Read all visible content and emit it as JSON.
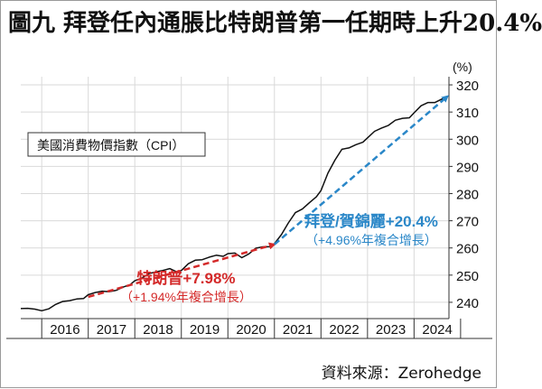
{
  "title": "圖九  拜登任內通脹比特朗普第一任期時上升20.4%",
  "source": "資料來源：Zerohedge",
  "chart_data": {
    "type": "line",
    "series_label": "美國消費物價指數（CPI）",
    "y_unit": "(%)",
    "ylim": [
      234,
      323
    ],
    "y_ticks": [
      240,
      250,
      260,
      270,
      280,
      290,
      300,
      310,
      320
    ],
    "x_ticks": [
      "2016",
      "2017",
      "2018",
      "2019",
      "2020",
      "2021",
      "2022",
      "2023",
      "2024"
    ],
    "xlim": [
      2015.55,
      2024.75
    ],
    "series": [
      {
        "values": [
          [
            2015.55,
            237.7
          ],
          [
            2015.7,
            237.8
          ],
          [
            2015.85,
            237.5
          ],
          [
            2016.0,
            236.9
          ],
          [
            2016.15,
            237.6
          ],
          [
            2016.3,
            239.2
          ],
          [
            2016.45,
            240.3
          ],
          [
            2016.6,
            240.6
          ],
          [
            2016.75,
            241.2
          ],
          [
            2016.9,
            241.4
          ],
          [
            2017.0,
            242.8
          ],
          [
            2017.15,
            243.6
          ],
          [
            2017.3,
            244.1
          ],
          [
            2017.45,
            243.9
          ],
          [
            2017.6,
            244.4
          ],
          [
            2017.75,
            245.6
          ],
          [
            2017.9,
            246.5
          ],
          [
            2018.0,
            247.9
          ],
          [
            2018.15,
            248.9
          ],
          [
            2018.3,
            250.5
          ],
          [
            2018.45,
            251.2
          ],
          [
            2018.6,
            251.7
          ],
          [
            2018.75,
            252.4
          ],
          [
            2018.9,
            251.2
          ],
          [
            2019.0,
            251.7
          ],
          [
            2019.15,
            254.2
          ],
          [
            2019.3,
            255.5
          ],
          [
            2019.45,
            255.7
          ],
          [
            2019.6,
            256.6
          ],
          [
            2019.75,
            257.3
          ],
          [
            2019.9,
            256.9
          ],
          [
            2020.0,
            257.9
          ],
          [
            2020.15,
            258.1
          ],
          [
            2020.3,
            256.4
          ],
          [
            2020.45,
            257.8
          ],
          [
            2020.6,
            259.9
          ],
          [
            2020.75,
            260.4
          ],
          [
            2020.9,
            260.5
          ],
          [
            2021.0,
            261.6
          ],
          [
            2021.15,
            264.9
          ],
          [
            2021.3,
            269.2
          ],
          [
            2021.45,
            273.0
          ],
          [
            2021.6,
            274.3
          ],
          [
            2021.75,
            276.6
          ],
          [
            2021.9,
            278.8
          ],
          [
            2022.0,
            281.1
          ],
          [
            2022.15,
            287.5
          ],
          [
            2022.3,
            292.3
          ],
          [
            2022.45,
            296.3
          ],
          [
            2022.6,
            296.8
          ],
          [
            2022.75,
            298.0
          ],
          [
            2022.9,
            298.9
          ],
          [
            2023.0,
            300.5
          ],
          [
            2023.15,
            302.9
          ],
          [
            2023.3,
            304.1
          ],
          [
            2023.45,
            305.1
          ],
          [
            2023.6,
            307.0
          ],
          [
            2023.75,
            307.7
          ],
          [
            2023.9,
            307.9
          ],
          [
            2024.0,
            309.7
          ],
          [
            2024.15,
            312.3
          ],
          [
            2024.3,
            313.5
          ],
          [
            2024.45,
            313.5
          ],
          [
            2024.6,
            314.8
          ],
          [
            2024.72,
            315.6
          ]
        ]
      }
    ],
    "annotations": [
      {
        "label": "特朗普+7.98%",
        "sublabel": "（+1.94%年複合增長）",
        "color": "#d42a2a",
        "arrow": [
          [
            2017.0,
            242.0
          ],
          [
            2021.0,
            261.3
          ]
        ]
      },
      {
        "label": "拜登/賀錦麗+20.4%",
        "sublabel": "（+4.96%年複合增長）",
        "color": "#2a87c8",
        "arrow": [
          [
            2021.0,
            261.3
          ],
          [
            2024.72,
            315.8
          ]
        ]
      }
    ]
  }
}
